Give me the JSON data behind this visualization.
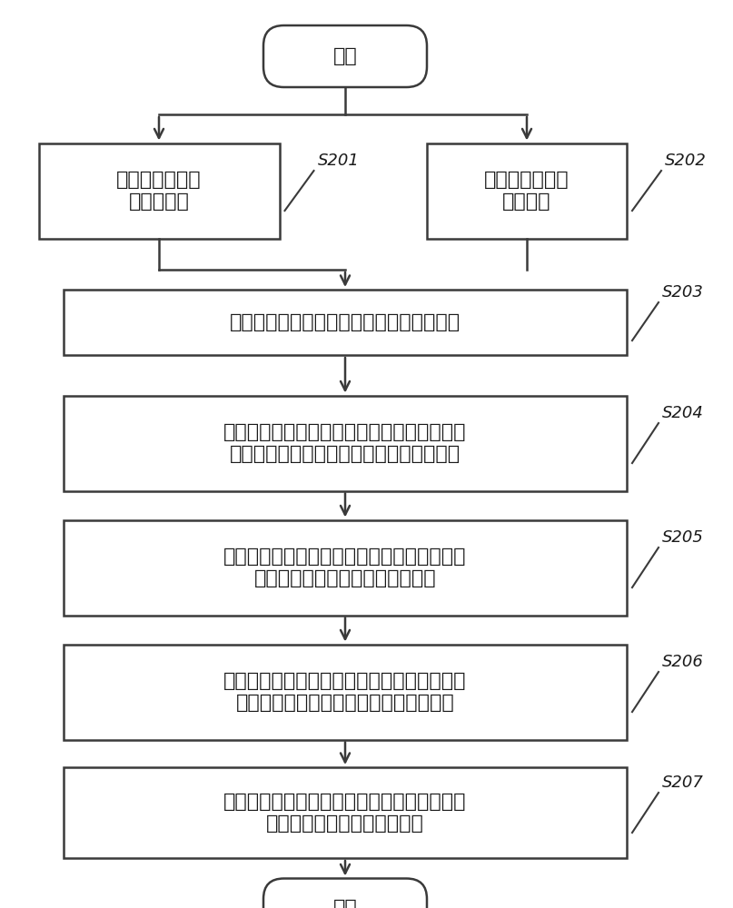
{
  "background_color": "#ffffff",
  "text_color": "#1a1a1a",
  "border_color": "#3a3a3a",
  "arrow_color": "#3a3a3a",
  "start_text": "开始",
  "end_text": "结束",
  "s201_text": "测量电缆群敷设\n的环境参数",
  "s201_label": "S201",
  "s202_text": "测量电缆群中的\n电缆参数",
  "s202_label": "S202",
  "s203_text": "根据环境参数和电缆参数建立的电缆群模型",
  "s203_label": "S203",
  "s204_text": "根据电缆群模型进行电缆表皮温度仿真计算，\n得到该电缆群中的第一电缆的表皮预估温度",
  "s204_label": "S204",
  "s205_text": "通过分布式光纤测温装置测量所述电缆群中的\n第一电缆在轴向上的表皮实际温度",
  "s205_label": "S205",
  "s206_text": "通过表皮预估温度和表皮实际温度，计算表皮\n实际温度与表皮预估温度之间的折算系数",
  "s206_label": "S206",
  "s207_text": "根据折算系数，对电缆表皮预估温度进行修正\n，计算出电缆的表皮实际温度",
  "s207_label": "S207",
  "font_size_text": 16,
  "font_size_label": 13
}
